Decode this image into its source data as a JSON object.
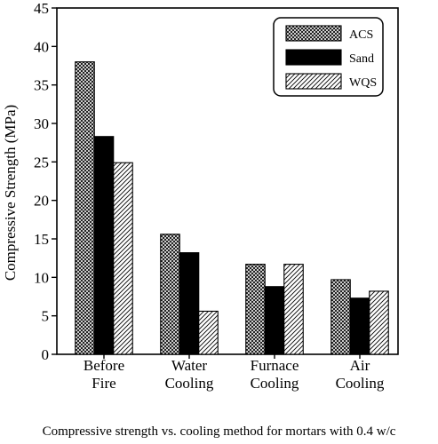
{
  "chart_data": {
    "type": "bar",
    "ylabel": "Compressive Strength (MPa)",
    "xlabel": "",
    "ylim": [
      0,
      45
    ],
    "yticks": [
      0,
      5,
      10,
      15,
      20,
      25,
      30,
      35,
      40,
      45
    ],
    "categories": [
      [
        "Before",
        "Fire"
      ],
      [
        "Water",
        "Cooling"
      ],
      [
        "Furnace",
        "Cooling"
      ],
      [
        "Air",
        "Cooling"
      ]
    ],
    "series": [
      {
        "name": "ACS",
        "pattern": "crosshatch",
        "values": [
          38.0,
          15.6,
          11.7,
          9.7
        ]
      },
      {
        "name": "Sand",
        "pattern": "solid",
        "values": [
          28.3,
          13.2,
          8.8,
          7.3
        ]
      },
      {
        "name": "WQS",
        "pattern": "diagonal",
        "values": [
          24.9,
          5.6,
          11.7,
          8.2
        ]
      }
    ],
    "legend_position": "top-right",
    "grid": false
  },
  "caption": "Compressive strength vs. cooling method for mortars with 0.4 w/c"
}
